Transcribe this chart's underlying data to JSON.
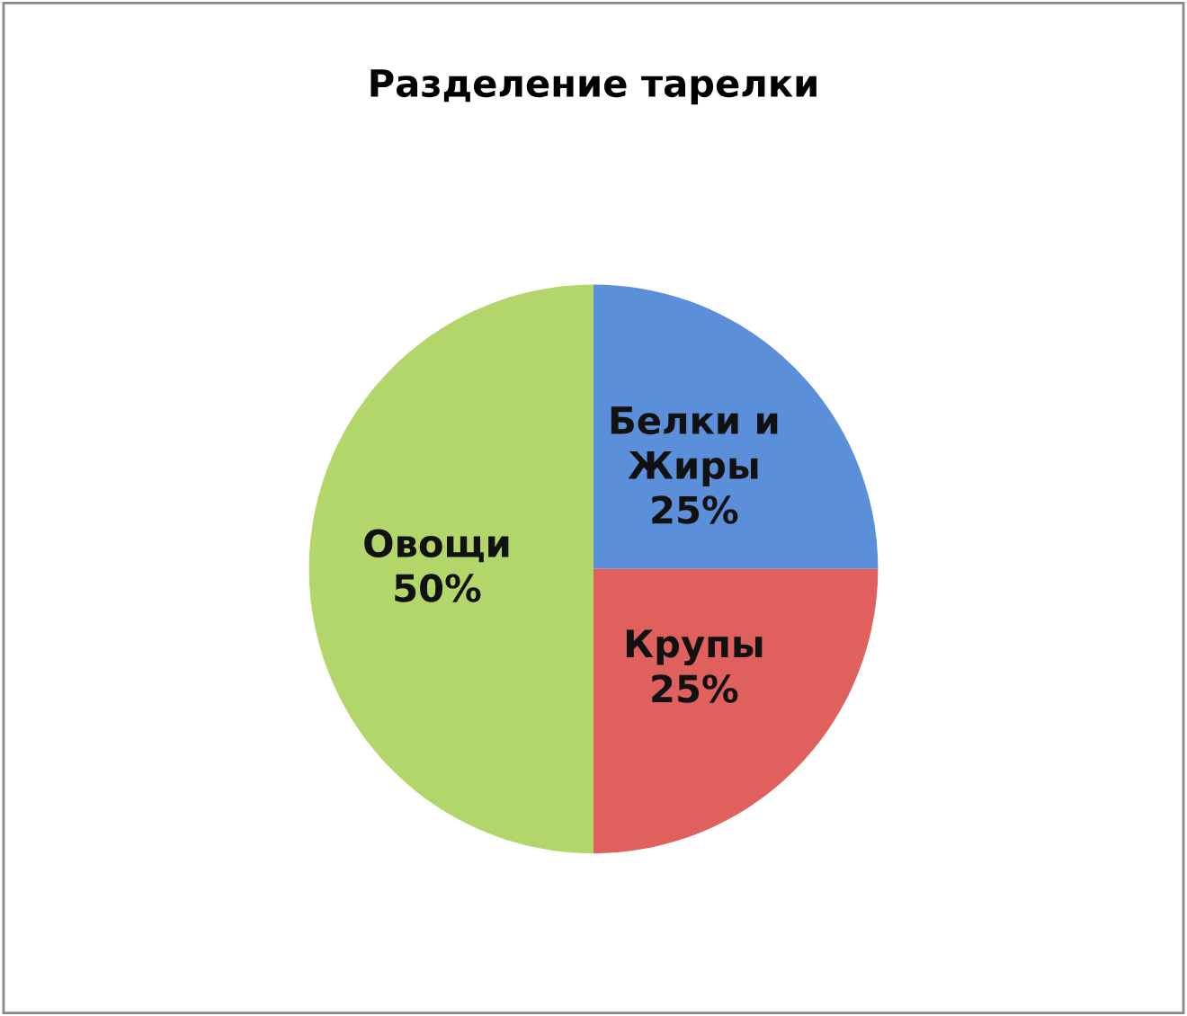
{
  "chart_data": {
    "type": "pie",
    "title": "Разделение тарелки",
    "categories": [
      "Белки и\nЖиры",
      "Крупы",
      "Овощи"
    ],
    "values": [
      25,
      25,
      50
    ],
    "value_labels": [
      "25%",
      "25%",
      "50%"
    ],
    "colors": [
      "#5b8fd9",
      "#e0605e",
      "#b3d66a"
    ]
  }
}
